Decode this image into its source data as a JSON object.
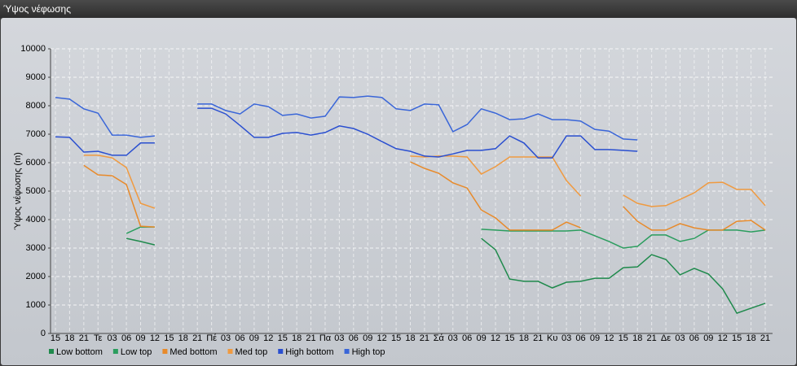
{
  "window_title": "Ύψος νέφωσης",
  "chart_data": {
    "type": "line",
    "y_label": "Ύψος νέφωσης (m)",
    "categories": [
      "15",
      "18",
      "21",
      "Τε",
      "03",
      "06",
      "09",
      "12",
      "15",
      "18",
      "21",
      "Πέ",
      "03",
      "06",
      "09",
      "12",
      "15",
      "18",
      "21",
      "Πα",
      "03",
      "06",
      "09",
      "12",
      "15",
      "18",
      "21",
      "Σά",
      "03",
      "06",
      "09",
      "12",
      "15",
      "18",
      "21",
      "Κυ",
      "03",
      "06",
      "09",
      "12",
      "15",
      "18",
      "21",
      "Δε",
      "03",
      "06",
      "09",
      "12",
      "15",
      "18",
      "21"
    ],
    "ylim": [
      0,
      10000
    ],
    "yticks": [
      0,
      1000,
      2000,
      3000,
      4000,
      5000,
      6000,
      7000,
      8000,
      9000,
      10000
    ],
    "grid": true,
    "legend": "bottom-left",
    "series": [
      {
        "name": "Low bottom",
        "color": "#1f8a4c",
        "values": [
          null,
          null,
          null,
          null,
          null,
          3340,
          3230,
          3110,
          null,
          null,
          null,
          null,
          null,
          null,
          null,
          null,
          null,
          null,
          null,
          null,
          null,
          null,
          null,
          null,
          null,
          null,
          null,
          null,
          null,
          null,
          3340,
          2940,
          1910,
          1830,
          1830,
          1600,
          1800,
          1830,
          1940,
          1940,
          2310,
          2340,
          2770,
          2600,
          2060,
          2290,
          2090,
          1570,
          710,
          890,
          1060
        ]
      },
      {
        "name": "Low top",
        "color": "#2b9d5e",
        "values": [
          null,
          null,
          null,
          null,
          null,
          3510,
          3740,
          3740,
          null,
          null,
          null,
          null,
          null,
          null,
          null,
          null,
          null,
          null,
          null,
          null,
          null,
          null,
          null,
          null,
          null,
          null,
          null,
          null,
          null,
          null,
          3660,
          3630,
          3600,
          3600,
          3600,
          3600,
          3600,
          3630,
          3430,
          3230,
          3000,
          3060,
          3460,
          3460,
          3230,
          3340,
          3630,
          3630,
          3630,
          3570,
          3630
        ]
      },
      {
        "name": "Med bottom",
        "color": "#e88a2a",
        "values": [
          null,
          null,
          5910,
          5570,
          5540,
          5230,
          3770,
          3740,
          null,
          null,
          null,
          null,
          null,
          null,
          null,
          null,
          null,
          null,
          null,
          null,
          null,
          null,
          null,
          null,
          null,
          6030,
          5800,
          5630,
          5290,
          5110,
          4340,
          4060,
          3630,
          3630,
          3630,
          3630,
          3910,
          3710,
          null,
          null,
          4460,
          3940,
          3630,
          3630,
          3860,
          3710,
          3630,
          3630,
          3940,
          3970,
          3630
        ]
      },
      {
        "name": "Med top",
        "color": "#f09a40",
        "values": [
          null,
          null,
          6260,
          6260,
          6170,
          5830,
          4570,
          4400,
          null,
          null,
          null,
          null,
          null,
          null,
          null,
          null,
          null,
          null,
          null,
          null,
          null,
          null,
          null,
          null,
          null,
          6230,
          6200,
          6230,
          6230,
          6200,
          5600,
          5860,
          6200,
          6200,
          6200,
          6200,
          5370,
          4830,
          null,
          null,
          4860,
          4570,
          4460,
          4490,
          4710,
          4940,
          5290,
          5310,
          5060,
          5060,
          4490
        ]
      },
      {
        "name": "High bottom",
        "color": "#2a4fd0",
        "values": [
          6910,
          6890,
          6370,
          6400,
          6260,
          6260,
          6690,
          6690,
          null,
          null,
          7910,
          7910,
          7710,
          7310,
          6890,
          6890,
          7030,
          7060,
          6970,
          7060,
          7290,
          7200,
          7000,
          6740,
          6490,
          6400,
          6230,
          6200,
          6310,
          6430,
          6430,
          6490,
          6940,
          6690,
          6170,
          6170,
          6940,
          6940,
          6460,
          6460,
          6430,
          6400,
          null,
          null,
          null,
          null,
          null,
          null,
          null,
          null,
          null
        ]
      },
      {
        "name": "High top",
        "color": "#3a66d8",
        "values": [
          8290,
          8230,
          7890,
          7740,
          6970,
          6970,
          6890,
          6940,
          null,
          null,
          8060,
          8060,
          7830,
          7710,
          8060,
          7970,
          7660,
          7710,
          7570,
          7630,
          8310,
          8290,
          8340,
          8290,
          7890,
          7830,
          8060,
          8030,
          7090,
          7340,
          7890,
          7740,
          7510,
          7540,
          7710,
          7510,
          7510,
          7460,
          7170,
          7110,
          6830,
          6800,
          null,
          null,
          null,
          null,
          null,
          null,
          null,
          null,
          null
        ]
      }
    ]
  }
}
